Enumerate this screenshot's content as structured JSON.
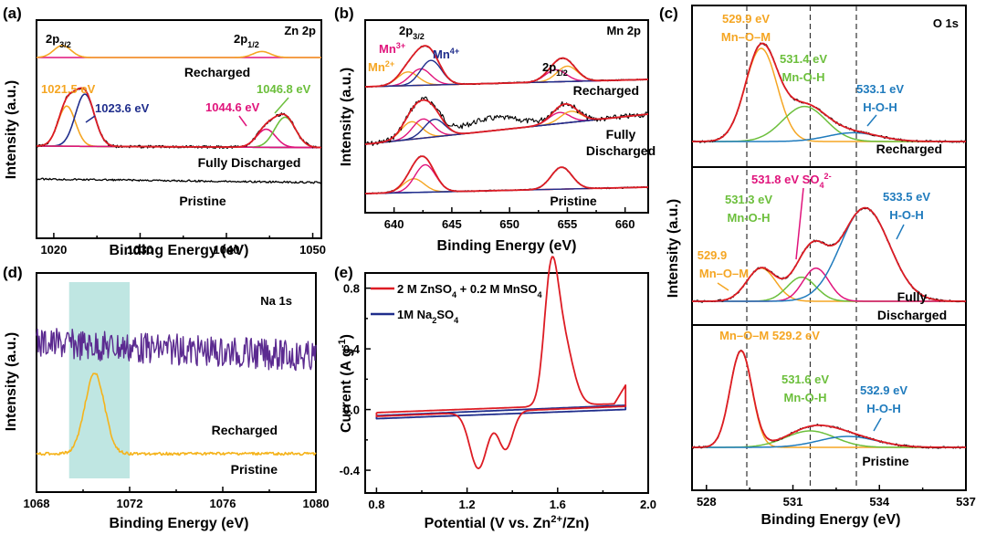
{
  "colors": {
    "raw": "#000000",
    "fit": "#dd1c24",
    "orange": "#f5a623",
    "magenta": "#e0147c",
    "blue": "#1f2d8c",
    "green": "#6cbf3c",
    "purple": "#5b2a90",
    "yellow": "#f5b31b",
    "cyan": "#1f7bbd",
    "shade": "#bfe6e2"
  },
  "chart_data": [
    {
      "id": "a",
      "type": "line",
      "panel_label": "(a)",
      "title": "Zn 2p",
      "xlabel": "Binding Energy (eV)",
      "ylabel": "Intensity (a.u.)",
      "xlim": [
        1018,
        1051
      ],
      "xticks": [
        1020,
        1030,
        1040,
        1050
      ],
      "tick_labels": [
        "1020",
        "1030",
        "1040",
        "1050"
      ],
      "curves": [
        {
          "name": "Recharged",
          "baseline_frac": 0.91,
          "peaks": [
            {
              "center": 1021.0,
              "height": 0.06,
              "width": 1.0
            },
            {
              "center": 1044.1,
              "height": 0.03,
              "width": 1.0
            }
          ]
        },
        {
          "name": "Fully Discharged",
          "baseline_frac": 0.4,
          "peaks": [
            {
              "center": 1021.5,
              "height": 0.2,
              "width": 1.0
            },
            {
              "center": 1023.6,
              "height": 0.26,
              "width": 1.1
            },
            {
              "center": 1044.6,
              "height": 0.09,
              "width": 1.1
            },
            {
              "center": 1046.8,
              "height": 0.15,
              "width": 1.2
            }
          ]
        },
        {
          "name": "Pristine",
          "baseline_frac": 0.3,
          "peaks": []
        }
      ],
      "annotations": {
        "p32": "2p",
        "p32_sub": "3/2",
        "p12": "2p",
        "p12_sub": "1/2",
        "e1": "1021.5 eV",
        "e2": "1023.6 eV",
        "e3": "1044.6 eV",
        "e4": "1046.8 eV"
      },
      "captions": [
        "Recharged",
        "Fully Discharged",
        "Pristine"
      ]
    },
    {
      "id": "b",
      "type": "line",
      "panel_label": "(b)",
      "title": "Mn 2p",
      "xlabel": "Binding Energy (eV)",
      "ylabel": "Intensity (a.u.)",
      "xlim": [
        637.5,
        662
      ],
      "xticks": [
        640,
        645,
        650,
        655,
        660
      ],
      "tick_labels": [
        "640",
        "645",
        "650",
        "655",
        "660"
      ],
      "curves": [
        {
          "name": "Recharged",
          "components": [
            "Mn2+",
            "Mn3+",
            "Mn4+"
          ],
          "peaks": [
            {
              "center": 641.2,
              "height": 0.25
            },
            {
              "center": 642.3,
              "height": 0.3
            },
            {
              "center": 643.2,
              "height": 0.45
            },
            {
              "center": 654.0,
              "height": 0.22
            },
            {
              "center": 655.0,
              "height": 0.28
            }
          ]
        },
        {
          "name": "Fully Discharged",
          "peaks": [
            {
              "center": 641.5,
              "height": 0.35
            },
            {
              "center": 642.5,
              "height": 0.38
            },
            {
              "center": 643.5,
              "height": 0.35
            },
            {
              "center": 654.3,
              "height": 0.22
            },
            {
              "center": 655.3,
              "height": 0.22
            }
          ]
        },
        {
          "name": "Pristine",
          "peaks": [
            {
              "center": 641.7,
              "height": 0.25
            },
            {
              "center": 642.7,
              "height": 0.5
            },
            {
              "center": 654.5,
              "height": 0.4
            }
          ]
        }
      ],
      "annotations": {
        "p32": "2p",
        "p32_sub": "3/2",
        "p12": "2p",
        "p12_sub": "1/2",
        "mn3": "Mn",
        "mn3_sup": "3+",
        "mn2": "Mn",
        "mn2_sup": "2+",
        "mn4": "Mn",
        "mn4_sup": "4+"
      },
      "captions": [
        "Recharged",
        "Fully",
        "Discharged",
        "Pristine"
      ]
    },
    {
      "id": "c",
      "type": "line",
      "panel_label": "(c)",
      "title": "O 1s",
      "xlabel": "Binding Energy (eV)",
      "ylabel": "Intensity (a.u.)",
      "xlim": [
        527.5,
        537
      ],
      "xticks": [
        528,
        531,
        534,
        537
      ],
      "tick_labels": [
        "528",
        "531",
        "534",
        "537"
      ],
      "dashed_lines": [
        529.4,
        531.6,
        533.2
      ],
      "subpanels": [
        {
          "name": "Recharged",
          "peaks": [
            {
              "center": 529.9,
              "height": 0.85,
              "label": "Mn–O–M"
            },
            {
              "center": 531.4,
              "height": 0.32,
              "label": "Mn-O-H"
            },
            {
              "center": 533.1,
              "height": 0.08,
              "label": "H-O-H"
            }
          ]
        },
        {
          "name": "Fully Discharged",
          "peaks": [
            {
              "center": 529.9,
              "height": 0.22,
              "label": "Mn–O–M"
            },
            {
              "center": 531.3,
              "height": 0.16,
              "label": "Mn-O-H"
            },
            {
              "center": 531.8,
              "height": 0.22,
              "label": "SO4 2-"
            },
            {
              "center": 533.5,
              "height": 0.62,
              "label": "H-O-H"
            }
          ]
        },
        {
          "name": "Pristine",
          "peaks": [
            {
              "center": 529.2,
              "height": 0.88,
              "label": "Mn–O–M"
            },
            {
              "center": 531.6,
              "height": 0.15,
              "label": "Mn-O-H"
            },
            {
              "center": 532.9,
              "height": 0.1,
              "label": "H-O-H"
            }
          ]
        }
      ],
      "annotations": {
        "r1": "529.9 eV",
        "r1b": "Mn–O–M",
        "r2": "531.4 eV",
        "r2b": "Mn-O-H",
        "r3": "533.1 eV",
        "r3b": "H-O-H",
        "d_so4": "531.8 eV SO",
        "d_so4_sub": "4",
        "d_so4_sup": "2-",
        "d1": "531.3 eV",
        "d1b": "Mn-O-H",
        "d2": "533.5 eV",
        "d2b": "H-O-H",
        "d3": "529.9",
        "d3b": "Mn–O–M",
        "q1": "Mn–O–M 529.2 eV",
        "q2": "531.6 eV",
        "q2b": "Mn-O-H",
        "q3": "532.9 eV",
        "q3b": "H-O-H"
      },
      "captions": [
        "Recharged",
        "Fully",
        "Discharged",
        "Pristine"
      ]
    },
    {
      "id": "d",
      "type": "line",
      "panel_label": "(d)",
      "title": "Na 1s",
      "xlabel": "Binding Energy (eV)",
      "ylabel": "Intensity (a.u.)",
      "xlim": [
        1068,
        1080
      ],
      "xticks": [
        1068,
        1072,
        1076,
        1080
      ],
      "tick_labels": [
        "1068",
        "1072",
        "1076",
        "1080"
      ],
      "shaded_range": [
        1069.4,
        1072
      ],
      "curves": [
        {
          "name": "Recharged",
          "peaks": []
        },
        {
          "name": "Pristine",
          "peaks": [
            {
              "center": 1070.5,
              "height": 1.0
            }
          ]
        }
      ],
      "captions": [
        "Recharged",
        "Pristine"
      ]
    },
    {
      "id": "e",
      "type": "line",
      "panel_label": "(e)",
      "xlabel": "Potential (V vs. Zn2+/Zn)",
      "xlabel_parts": [
        "Potential (V vs. Zn",
        "2+",
        "/Zn)"
      ],
      "ylabel": "Current (A g-1)",
      "ylabel_parts": [
        "Current (A g",
        "-1",
        ")"
      ],
      "xlim": [
        0.75,
        2.0
      ],
      "ylim": [
        -0.55,
        0.9
      ],
      "xticks": [
        0.8,
        1.2,
        1.6,
        2.0
      ],
      "yticks": [
        -0.4,
        0.0,
        0.4,
        0.8
      ],
      "tick_labels_x": [
        "0.8",
        "1.2",
        "1.6",
        "2.0"
      ],
      "tick_labels_y": [
        "-0.4",
        "0.0",
        "0.4",
        "0.8"
      ],
      "series": [
        {
          "name": "2 M ZnSO4 + 0.2 M MnSO4",
          "legend_parts": [
            "2 M ZnSO",
            "4",
            " + 0.2 M MnSO",
            "4"
          ],
          "reduction_peaks": [
            {
              "x": 1.25,
              "y": -0.41
            },
            {
              "x": 1.37,
              "y": -0.29
            }
          ],
          "oxidation_peaks": [
            {
              "x": 1.57,
              "y": 0.78
            },
            {
              "x": 1.62,
              "y": 0.55
            }
          ]
        },
        {
          "name": "1M Na2SO4",
          "legend_parts": [
            "1M Na",
            "2",
            "SO",
            "4"
          ]
        }
      ]
    }
  ]
}
